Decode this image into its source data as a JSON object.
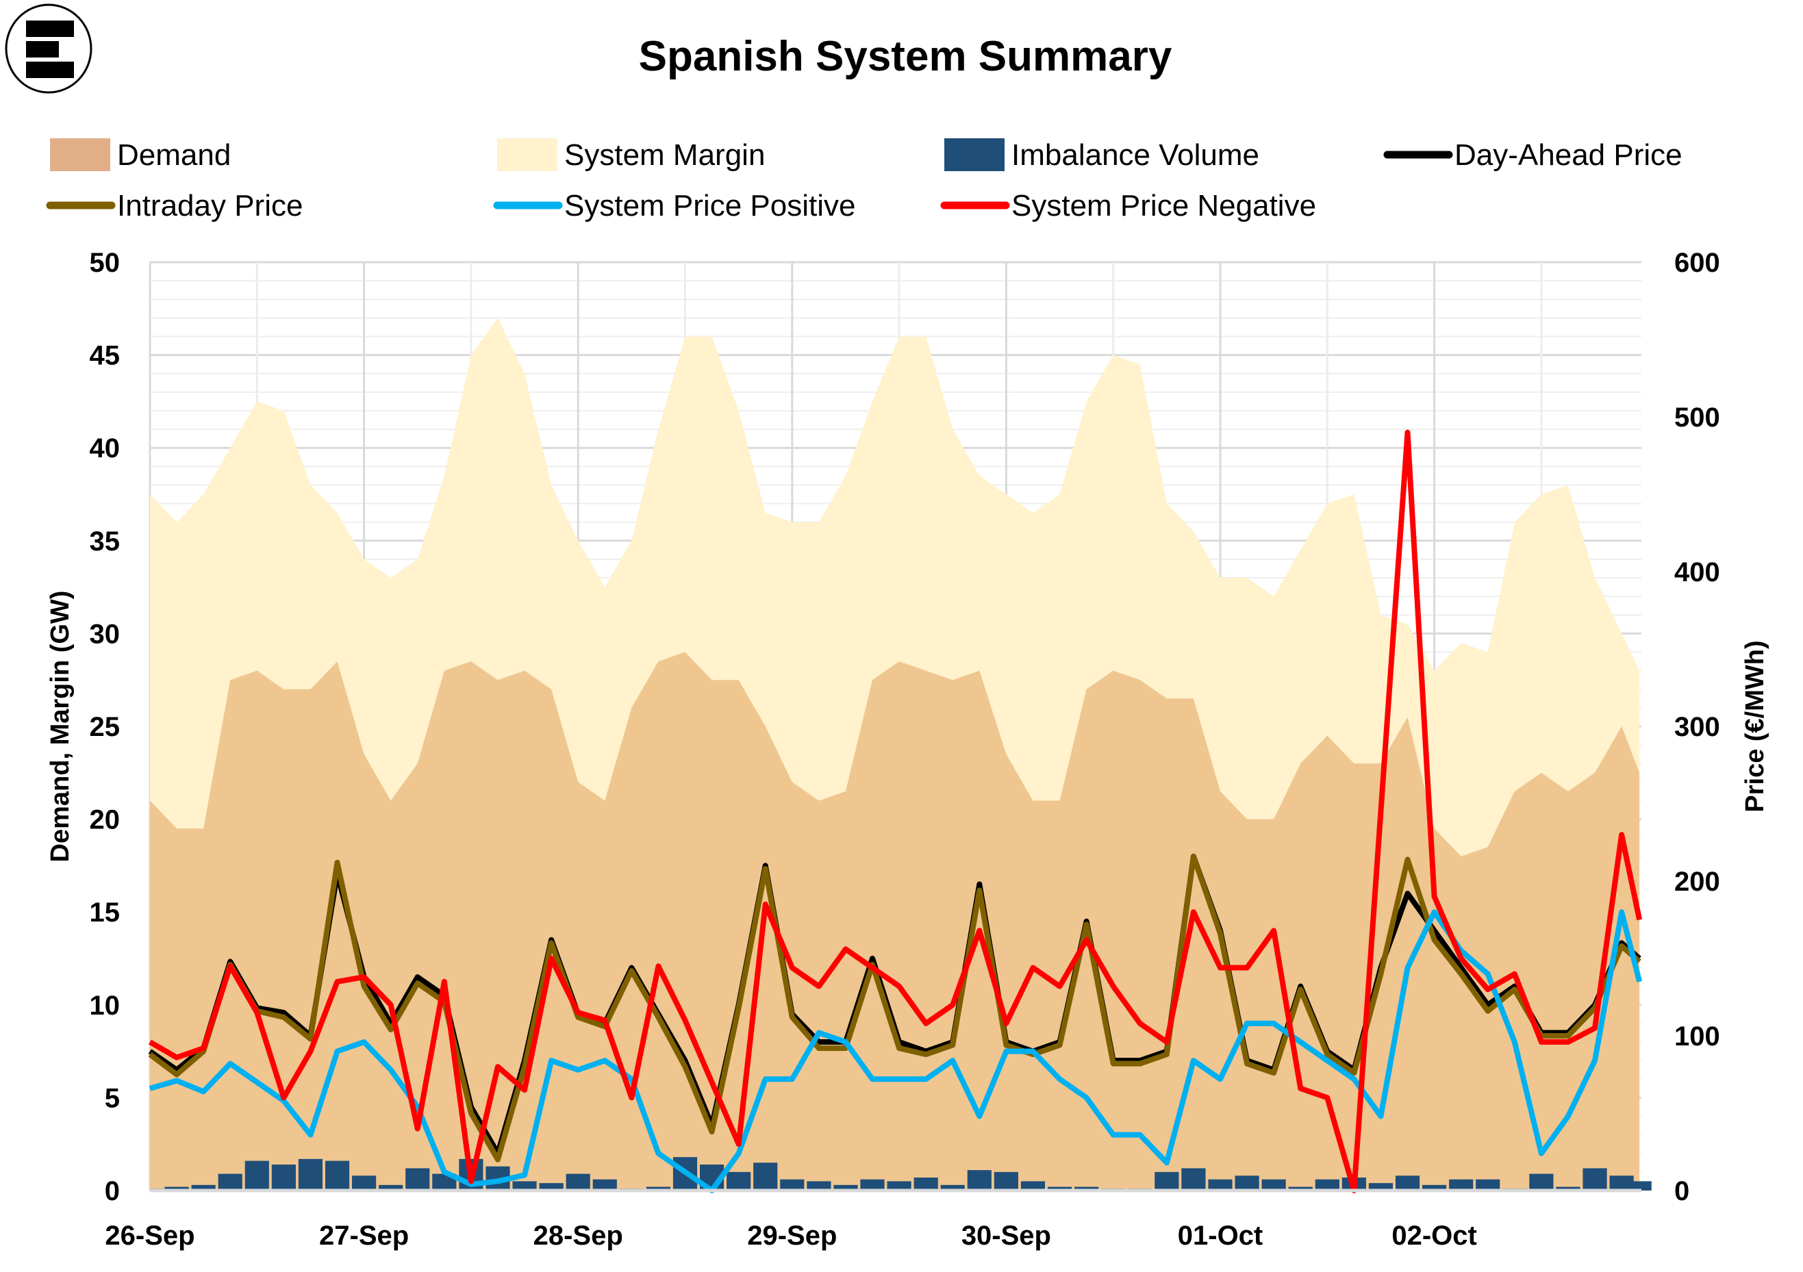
{
  "chart_data": {
    "type": "area+bar+line",
    "title": "Spanish System Summary",
    "ylabel_left": "Demand, Margin (GW)",
    "ylabel_right": "Price (€/MWh)",
    "ylim_left": [
      0,
      50
    ],
    "ylim_right": [
      0,
      600
    ],
    "yticks_left": [
      "0",
      "5",
      "10",
      "15",
      "20",
      "25",
      "30",
      "35",
      "40",
      "45",
      "50"
    ],
    "yticks_right": [
      "0",
      "100",
      "200",
      "300",
      "400",
      "500",
      "600"
    ],
    "xticks": [
      "26-Sep",
      "27-Sep",
      "28-Sep",
      "29-Sep",
      "30-Sep",
      "01-Oct",
      "02-Oct"
    ],
    "grid": true,
    "legend_position": "top",
    "x": [
      "26-Sep 00:00",
      "26-Sep 03:00",
      "26-Sep 06:00",
      "26-Sep 09:00",
      "26-Sep 12:00",
      "26-Sep 15:00",
      "26-Sep 18:00",
      "26-Sep 21:00",
      "27-Sep 00:00",
      "27-Sep 03:00",
      "27-Sep 06:00",
      "27-Sep 09:00",
      "27-Sep 12:00",
      "27-Sep 15:00",
      "27-Sep 18:00",
      "27-Sep 21:00",
      "28-Sep 00:00",
      "28-Sep 03:00",
      "28-Sep 06:00",
      "28-Sep 09:00",
      "28-Sep 12:00",
      "28-Sep 15:00",
      "28-Sep 18:00",
      "28-Sep 21:00",
      "29-Sep 00:00",
      "29-Sep 03:00",
      "29-Sep 06:00",
      "29-Sep 09:00",
      "29-Sep 12:00",
      "29-Sep 15:00",
      "29-Sep 18:00",
      "29-Sep 21:00",
      "30-Sep 00:00",
      "30-Sep 03:00",
      "30-Sep 06:00",
      "30-Sep 09:00",
      "30-Sep 12:00",
      "30-Sep 15:00",
      "30-Sep 18:00",
      "30-Sep 21:00",
      "01-Oct 00:00",
      "01-Oct 03:00",
      "01-Oct 06:00",
      "01-Oct 09:00",
      "01-Oct 12:00",
      "01-Oct 15:00",
      "01-Oct 18:00",
      "01-Oct 21:00",
      "02-Oct 00:00",
      "02-Oct 03:00",
      "02-Oct 06:00",
      "02-Oct 09:00",
      "02-Oct 12:00",
      "02-Oct 15:00",
      "02-Oct 18:00",
      "02-Oct 21:00",
      "02-Oct 23:00"
    ],
    "series": [
      {
        "name": "Demand",
        "type": "area",
        "axis": "left",
        "color": "#EFC690",
        "legend_color": "#E2AE88",
        "values": [
          21,
          19.5,
          19.5,
          27.5,
          28,
          27,
          27,
          28.5,
          23.5,
          21,
          23,
          28,
          28.5,
          27.5,
          28,
          27,
          22,
          21,
          26,
          28.5,
          29,
          27.5,
          27.5,
          25,
          22,
          21,
          21.5,
          27.5,
          28.5,
          28,
          27.5,
          28,
          23.5,
          21,
          21,
          27,
          28,
          27.5,
          26.5,
          26.5,
          21.5,
          20,
          20,
          23,
          24.5,
          23,
          23,
          25.5,
          19.5,
          18,
          18.5,
          21.5,
          22.5,
          21.5,
          22.5,
          25,
          22.5
        ]
      },
      {
        "name": "System Margin",
        "type": "stacked-area",
        "axis": "left",
        "color": "#FFF2CC",
        "values": [
          16.5,
          16.5,
          18,
          12.5,
          14.5,
          15,
          11,
          8,
          10.5,
          12,
          11,
          10.5,
          16.5,
          19.5,
          16,
          11,
          13,
          11.5,
          9,
          12.5,
          17,
          18.5,
          14.5,
          11.5,
          14,
          15,
          17,
          15,
          17.5,
          18,
          13.5,
          10.5,
          14,
          15.5,
          16.5,
          15.5,
          17,
          17,
          10.5,
          9,
          11.5,
          13,
          12,
          11.5,
          12.5,
          14.5,
          8,
          5,
          8.5,
          11.5,
          10.5,
          14.5,
          15,
          16.5,
          10.5,
          5,
          5.5
        ]
      },
      {
        "name": "Imbalance Volume",
        "type": "bar",
        "axis": "left",
        "color": "#1F4E79",
        "values": [
          0.1,
          0.2,
          0.3,
          0.9,
          1.6,
          1.4,
          1.7,
          1.6,
          0.8,
          0.3,
          1.2,
          0.9,
          1.7,
          1.3,
          0.5,
          0.4,
          0.9,
          0.6,
          0.1,
          0.2,
          1.8,
          1.4,
          1.0,
          1.5,
          0.6,
          0.5,
          0.3,
          0.6,
          0.5,
          0.7,
          0.3,
          1.1,
          1.0,
          0.5,
          0.2,
          0.2,
          0.1,
          0.1,
          1.0,
          1.2,
          0.6,
          0.8,
          0.6,
          0.2,
          0.6,
          0.7,
          0.4,
          0.8,
          0.3,
          0.6,
          0.6,
          0.1,
          0.9,
          0.2,
          1.2,
          0.8,
          0.5
        ]
      },
      {
        "name": "Day-Ahead Price",
        "type": "line",
        "axis": "right",
        "color": "#000000",
        "values": [
          90,
          78,
          92,
          148,
          118,
          115,
          100,
          205,
          138,
          108,
          138,
          126,
          54,
          24,
          84,
          162,
          114,
          108,
          144,
          114,
          84,
          42,
          120,
          210,
          114,
          96,
          96,
          150,
          96,
          90,
          96,
          198,
          96,
          90,
          96,
          174,
          84,
          84,
          90,
          216,
          168,
          84,
          78,
          132,
          90,
          78,
          144,
          192,
          168,
          144,
          120,
          132,
          102,
          102,
          120,
          160,
          150
        ]
      },
      {
        "name": "Intraday Price",
        "type": "line",
        "axis": "right",
        "color": "#7F6000",
        "values": [
          88,
          75,
          90,
          146,
          116,
          112,
          98,
          212,
          132,
          104,
          134,
          122,
          50,
          20,
          80,
          160,
          112,
          106,
          142,
          112,
          80,
          38,
          118,
          208,
          112,
          92,
          92,
          146,
          92,
          88,
          94,
          194,
          94,
          88,
          94,
          172,
          82,
          82,
          88,
          216,
          166,
          82,
          76,
          130,
          88,
          76,
          140,
          214,
          162,
          140,
          116,
          130,
          100,
          100,
          118,
          158,
          148
        ]
      },
      {
        "name": "System Price Positive",
        "type": "line",
        "axis": "right",
        "color": "#00B0F0",
        "values": [
          66,
          71,
          64,
          82,
          70,
          58,
          36,
          90,
          96,
          78,
          54,
          12,
          4,
          6,
          10,
          84,
          78,
          84,
          72,
          24,
          12,
          0,
          24,
          72,
          72,
          102,
          96,
          72,
          72,
          72,
          84,
          48,
          90,
          90,
          72,
          60,
          36,
          36,
          18,
          84,
          72,
          108,
          108,
          96,
          84,
          72,
          48,
          144,
          180,
          155,
          140,
          96,
          24,
          48,
          84,
          180,
          135
        ]
      },
      {
        "name": "System Price Negative",
        "type": "line",
        "axis": "right",
        "color": "#FF0000",
        "values": [
          96,
          86,
          92,
          145,
          115,
          60,
          90,
          135,
          138,
          120,
          40,
          135,
          6,
          80,
          65,
          150,
          115,
          110,
          60,
          145,
          110,
          70,
          30,
          185,
          144,
          132,
          156,
          144,
          132,
          108,
          120,
          168,
          108,
          144,
          132,
          162,
          132,
          108,
          96,
          180,
          144,
          144,
          168,
          66,
          60,
          0,
          245,
          490,
          190,
          150,
          130,
          140,
          96,
          96,
          105,
          230,
          175
        ]
      }
    ]
  },
  "logo": {
    "letter": "E"
  }
}
